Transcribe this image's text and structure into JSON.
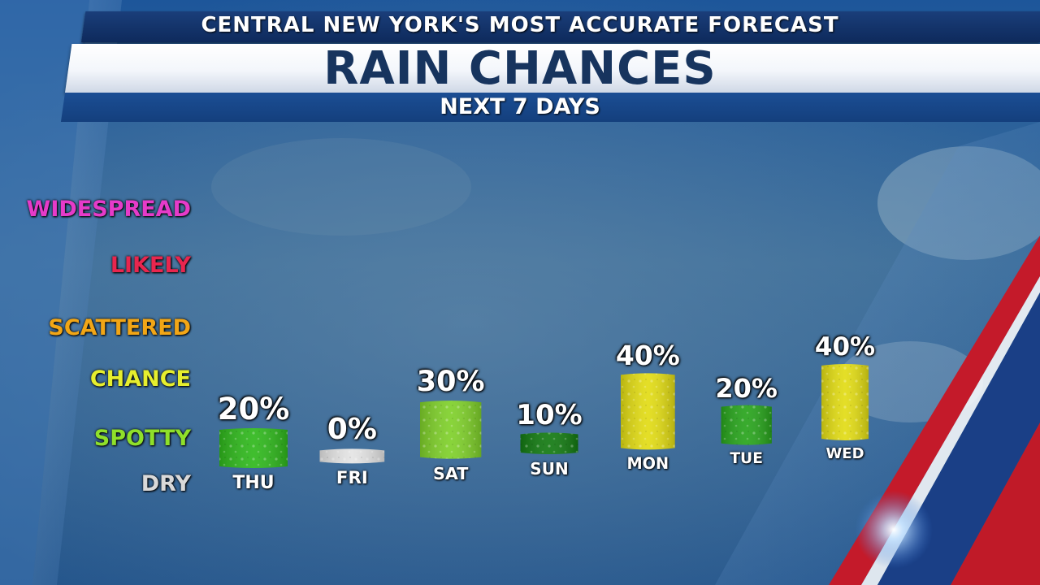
{
  "header": {
    "tagline": "CENTRAL NEW YORK'S MOST ACCURATE FORECAST",
    "title": "RAIN CHANCES",
    "subtitle": "NEXT 7 DAYS"
  },
  "levels": [
    {
      "label": "DRY",
      "color": "#d9d9d9"
    },
    {
      "label": "SPOTTY",
      "color": "#8fe02a"
    },
    {
      "label": "CHANCE",
      "color": "#e6ee2e"
    },
    {
      "label": "SCATTERED",
      "color": "#f2a616"
    },
    {
      "label": "LIKELY",
      "color": "#e8264e"
    },
    {
      "label": "WIDESPREAD",
      "color": "#e63bc9"
    }
  ],
  "chart_data": {
    "type": "bar",
    "categories": [
      "THU",
      "FRI",
      "SAT",
      "SUN",
      "MON",
      "TUE",
      "WED"
    ],
    "values": [
      20,
      0,
      30,
      10,
      40,
      20,
      40
    ],
    "value_labels": [
      "20%",
      "0%",
      "30%",
      "10%",
      "40%",
      "20%",
      "40%"
    ],
    "bar_colors": [
      "#2fb81c",
      "#e4e4e4",
      "#7fd02a",
      "#137a12",
      "#e2dc14",
      "#28a41c",
      "#e2dc14"
    ],
    "ylabel": "",
    "ylim": [
      0,
      100
    ],
    "grid": false,
    "legend": "none"
  }
}
